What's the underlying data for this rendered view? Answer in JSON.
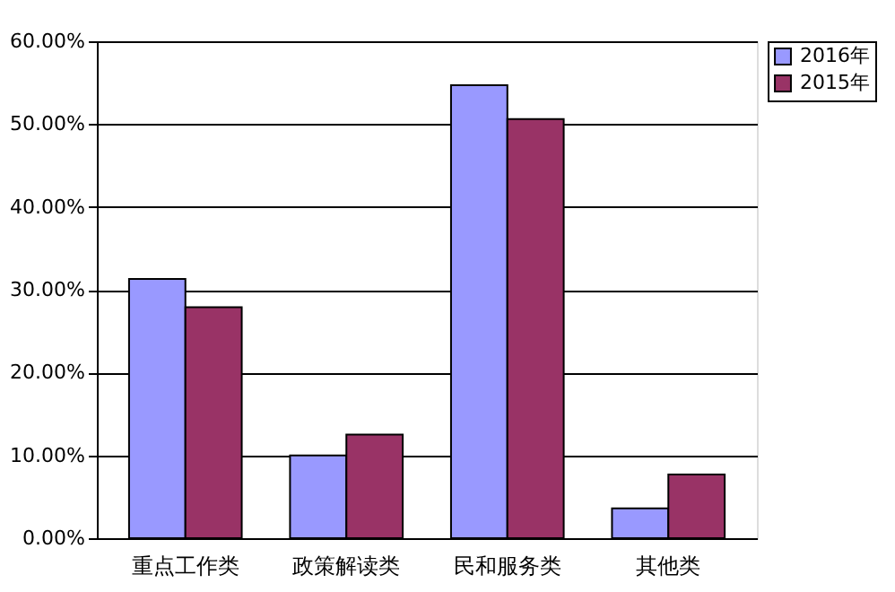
{
  "chart_data": {
    "type": "bar",
    "categories": [
      "重点工作类",
      "政策解读类",
      "民和服务类",
      "其他类"
    ],
    "series": [
      {
        "name": "2016年",
        "color": "#9999ff",
        "values": [
          31.3,
          10.0,
          54.7,
          3.6
        ]
      },
      {
        "name": "2015年",
        "color": "#993366",
        "values": [
          27.9,
          12.5,
          50.6,
          7.7
        ]
      }
    ],
    "ylim": [
      0,
      60
    ],
    "yticks": [
      {
        "value": 0,
        "label": "0.00%"
      },
      {
        "value": 10,
        "label": "10.00%"
      },
      {
        "value": 20,
        "label": "20.00%"
      },
      {
        "value": 30,
        "label": "30.00%"
      },
      {
        "value": 40,
        "label": "40.00%"
      },
      {
        "value": 50,
        "label": "50.00%"
      },
      {
        "value": 60,
        "label": "60.00%"
      }
    ],
    "grid": "y",
    "legend": "right"
  }
}
